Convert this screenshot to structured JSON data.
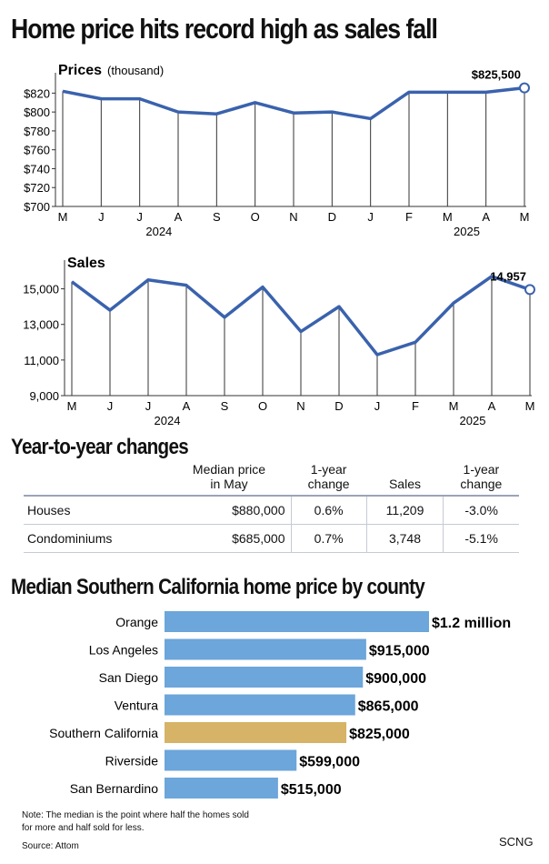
{
  "headline": "Home price hits record high as sales fall",
  "chart_data": [
    {
      "type": "line",
      "title": "Prices",
      "subtitle": "(thousand)",
      "categories": [
        "M",
        "J",
        "J",
        "A",
        "S",
        "O",
        "N",
        "D",
        "J",
        "F",
        "M",
        "A",
        "M"
      ],
      "year_labels": [
        {
          "label": "2024",
          "index": 2.5
        },
        {
          "label": "2025",
          "index": 10.5
        }
      ],
      "values": [
        822,
        814,
        814,
        800,
        798,
        810,
        799,
        800,
        793,
        821,
        821,
        821,
        825.5
      ],
      "ylim": [
        700,
        830
      ],
      "yticks": [
        700,
        720,
        740,
        760,
        780,
        800,
        820
      ],
      "ytick_labels": [
        "$700",
        "$720",
        "$740",
        "$760",
        "$780",
        "$800",
        "$820"
      ],
      "annotation": "$825,500",
      "line_color": "#3a62ad"
    },
    {
      "type": "line",
      "title": "Sales",
      "categories": [
        "M",
        "J",
        "J",
        "A",
        "S",
        "O",
        "N",
        "D",
        "J",
        "F",
        "M",
        "A",
        "M"
      ],
      "year_labels": [
        {
          "label": "2024",
          "index": 2.5
        },
        {
          "label": "2025",
          "index": 10.5
        }
      ],
      "values": [
        15400,
        13800,
        15500,
        15200,
        13400,
        15100,
        12600,
        14000,
        11300,
        12000,
        14200,
        15700,
        14957
      ],
      "ylim": [
        9000,
        16000
      ],
      "yticks": [
        9000,
        11000,
        13000,
        15000
      ],
      "ytick_labels": [
        "9,000",
        "11,000",
        "13,000",
        "15,000"
      ],
      "annotation": "14,957",
      "line_color": "#3a62ad"
    },
    {
      "type": "bar",
      "title": "Median Southern California home price by county",
      "categories": [
        "Orange",
        "Los Angeles",
        "San Diego",
        "Ventura",
        "Southern California",
        "Riverside",
        "San Bernardino"
      ],
      "values": [
        1200000,
        915000,
        900000,
        865000,
        825000,
        599000,
        515000
      ],
      "value_labels": [
        "$1.2 million",
        "$915,000",
        "$900,000",
        "$865,000",
        "$825,000",
        "$599,000",
        "$515,000"
      ],
      "colors": [
        "#6ca6da",
        "#6ca6da",
        "#6ca6da",
        "#6ca6da",
        "#d6b366",
        "#6ca6da",
        "#6ca6da"
      ],
      "xlim": [
        0,
        1200000
      ]
    }
  ],
  "yoy": {
    "title": "Year-to-year changes",
    "headers": [
      "",
      "Median price\nin May",
      "1-year\nchange",
      "Sales",
      "1-year\nchange"
    ],
    "rows": [
      [
        "Houses",
        "$880,000",
        "0.6%",
        "11,209",
        "-3.0%"
      ],
      [
        "Condominiums",
        "$685,000",
        "0.7%",
        "3,748",
        "-5.1%"
      ]
    ]
  },
  "note": "Note: The median is the point where half the homes sold for more and half sold for less.",
  "source": "Source: Attom",
  "credit": "SCNG"
}
